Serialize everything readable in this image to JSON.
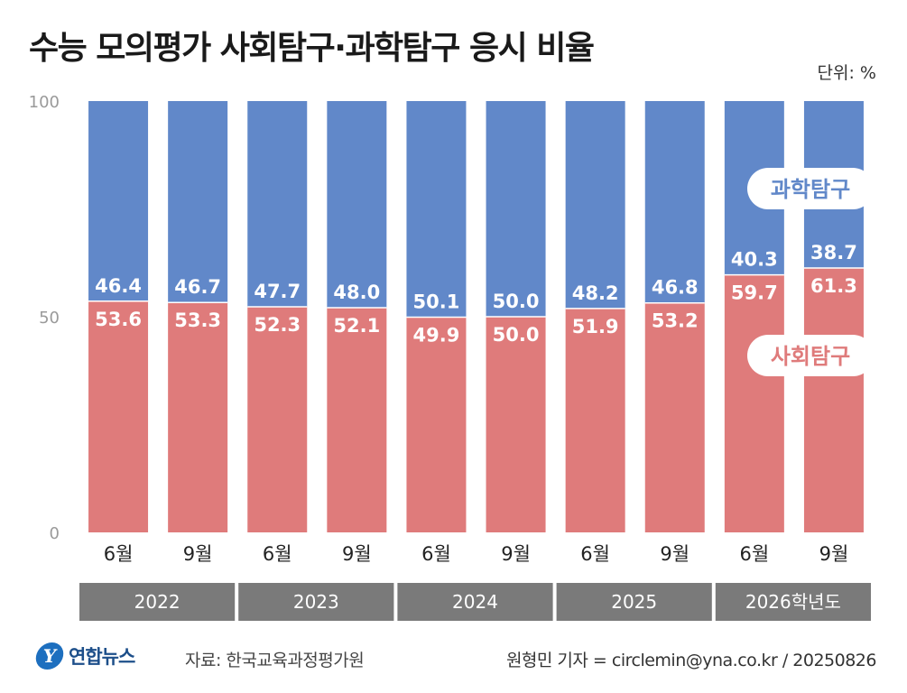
{
  "title": "수능 모의평가 사회탐구·과학탐구 응시 비율",
  "unit": "단위: %",
  "colors": {
    "science": "#6188c9",
    "social": "#df7b7b",
    "year_band": "#7a7a7a",
    "axis_label": "#9a9a9a"
  },
  "chart_data": {
    "type": "bar",
    "stacked": true,
    "ylim": [
      0,
      100
    ],
    "yticks": [
      0,
      50,
      100
    ],
    "categories": [
      "6월",
      "9월",
      "6월",
      "9월",
      "6월",
      "9월",
      "6월",
      "9월",
      "6월",
      "9월"
    ],
    "groups": [
      {
        "label": "2022",
        "span": 2
      },
      {
        "label": "2023",
        "span": 2
      },
      {
        "label": "2024",
        "span": 2
      },
      {
        "label": "2025",
        "span": 2
      },
      {
        "label": "2026학년도",
        "span": 2
      }
    ],
    "series": [
      {
        "name": "사회탐구",
        "values": [
          53.6,
          53.3,
          52.3,
          52.1,
          49.9,
          50.0,
          51.9,
          53.2,
          59.7,
          61.3
        ]
      },
      {
        "name": "과학탐구",
        "values": [
          46.4,
          46.7,
          47.7,
          48.0,
          50.1,
          50.0,
          48.2,
          46.8,
          40.3,
          38.7
        ]
      }
    ],
    "data_labels": {
      "social": [
        "53.6",
        "53.3",
        "52.3",
        "52.1",
        "49.9",
        "50.0",
        "51.9",
        "53.2",
        "59.7",
        "61.3"
      ],
      "science": [
        "46.4",
        "46.7",
        "47.7",
        "48.0",
        "50.1",
        "50.0",
        "48.2",
        "46.8",
        "40.3",
        "38.7"
      ]
    },
    "legend_placement": "inside-right"
  },
  "footer": {
    "logo_text": "연합뉴스",
    "source": "자료: 한국교육과정평가원",
    "credit": "원형민 기자 = circlemin@yna.co.kr / 20250826"
  }
}
